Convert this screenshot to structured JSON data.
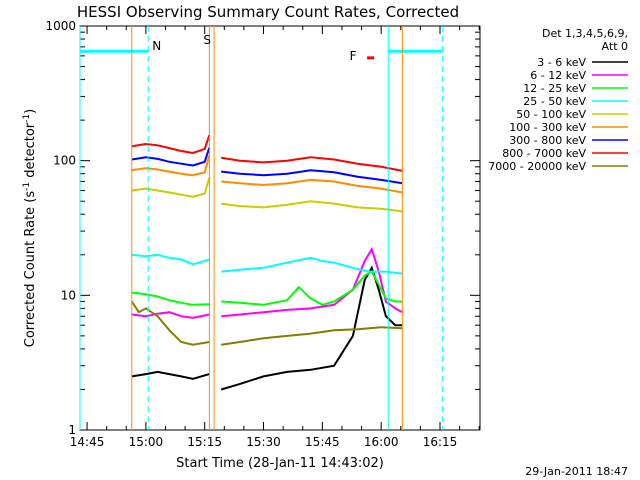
{
  "chart_data": {
    "type": "line",
    "title": "HESSI Observing Summary Count Rates, Corrected",
    "xlabel": "Start Time (28-Jan-11 14:43:02)",
    "ylabel": "Corrected Count Rate (s",
    "ylabel_sup1": "-1",
    "ylabel_mid": " detector",
    "ylabel_sup2": "-1",
    "ylabel_end": ")",
    "y_scale": "log",
    "ylim": [
      1,
      1000
    ],
    "xlim_minutes": [
      14.72,
      16.42
    ],
    "x_ticks": [
      {
        "minute": 14.75,
        "label": "14:45"
      },
      {
        "minute": 15.0,
        "label": "15:00"
      },
      {
        "minute": 15.25,
        "label": "15:15"
      },
      {
        "minute": 15.5,
        "label": "15:30"
      },
      {
        "minute": 15.75,
        "label": "15:45"
      },
      {
        "minute": 16.0,
        "label": "16:00"
      },
      {
        "minute": 16.25,
        "label": "16:15"
      }
    ],
    "y_ticks": [
      {
        "value": 1,
        "label": "1"
      },
      {
        "value": 10,
        "label": "10"
      },
      {
        "value": 100,
        "label": "100"
      },
      {
        "value": 1000,
        "label": "1000"
      }
    ],
    "legend_title_1": "Det 1,3,4,5,6,9,",
    "legend_title_2": "Att 0",
    "series": [
      {
        "name": "3 - 6 keV",
        "color": "#000000",
        "seg1": [
          [
            14.94,
            2.5
          ],
          [
            15.0,
            2.6
          ],
          [
            15.05,
            2.7
          ],
          [
            15.1,
            2.6
          ],
          [
            15.15,
            2.5
          ],
          [
            15.2,
            2.4
          ],
          [
            15.27,
            2.6
          ]
        ],
        "seg2": [
          [
            15.32,
            2.0
          ],
          [
            15.4,
            2.2
          ],
          [
            15.5,
            2.5
          ],
          [
            15.6,
            2.7
          ],
          [
            15.7,
            2.8
          ],
          [
            15.8,
            3.0
          ],
          [
            15.88,
            5
          ],
          [
            15.93,
            13
          ],
          [
            15.96,
            16
          ],
          [
            15.99,
            11
          ],
          [
            16.02,
            7
          ],
          [
            16.06,
            6
          ],
          [
            16.09,
            6
          ]
        ]
      },
      {
        "name": "6 - 12 keV",
        "color": "#ff00ff",
        "seg1": [
          [
            14.94,
            7.2
          ],
          [
            15.0,
            7.0
          ],
          [
            15.05,
            7.3
          ],
          [
            15.1,
            7.5
          ],
          [
            15.15,
            7.0
          ],
          [
            15.2,
            6.8
          ],
          [
            15.27,
            7.2
          ]
        ],
        "seg2": [
          [
            15.32,
            7.0
          ],
          [
            15.4,
            7.2
          ],
          [
            15.5,
            7.5
          ],
          [
            15.6,
            7.8
          ],
          [
            15.7,
            8.0
          ],
          [
            15.8,
            8.5
          ],
          [
            15.88,
            11
          ],
          [
            15.93,
            18
          ],
          [
            15.96,
            22
          ],
          [
            15.99,
            15
          ],
          [
            16.02,
            9
          ],
          [
            16.06,
            8
          ],
          [
            16.09,
            7.5
          ]
        ]
      },
      {
        "name": "12 - 25 keV",
        "color": "#00ff00",
        "seg1": [
          [
            14.94,
            10.5
          ],
          [
            15.0,
            10.2
          ],
          [
            15.05,
            9.8
          ],
          [
            15.1,
            9.2
          ],
          [
            15.15,
            8.8
          ],
          [
            15.2,
            8.5
          ],
          [
            15.27,
            8.6
          ]
        ],
        "seg2": [
          [
            15.32,
            9.0
          ],
          [
            15.4,
            8.8
          ],
          [
            15.5,
            8.5
          ],
          [
            15.6,
            9.2
          ],
          [
            15.65,
            11.5
          ],
          [
            15.7,
            9.5
          ],
          [
            15.75,
            8.5
          ],
          [
            15.8,
            9.0
          ],
          [
            15.88,
            11
          ],
          [
            15.93,
            14
          ],
          [
            15.96,
            15
          ],
          [
            15.99,
            12
          ],
          [
            16.02,
            9.5
          ],
          [
            16.06,
            9
          ],
          [
            16.09,
            9
          ]
        ]
      },
      {
        "name": "25 - 50 keV",
        "color": "#00ffff",
        "seg1": [
          [
            14.94,
            20
          ],
          [
            15.0,
            19.5
          ],
          [
            15.05,
            20
          ],
          [
            15.1,
            19
          ],
          [
            15.15,
            18.5
          ],
          [
            15.2,
            17
          ],
          [
            15.27,
            18.5
          ]
        ],
        "seg2": [
          [
            15.32,
            15
          ],
          [
            15.4,
            15.5
          ],
          [
            15.5,
            16
          ],
          [
            15.6,
            17.5
          ],
          [
            15.7,
            19
          ],
          [
            15.75,
            18
          ],
          [
            15.8,
            17.5
          ],
          [
            15.88,
            16
          ],
          [
            15.95,
            15
          ],
          [
            16.02,
            15
          ],
          [
            16.09,
            14.5
          ]
        ]
      },
      {
        "name": "50 - 100 keV",
        "color": "#cccc00",
        "seg1": [
          [
            14.94,
            60
          ],
          [
            15.0,
            62
          ],
          [
            15.05,
            60
          ],
          [
            15.1,
            58
          ],
          [
            15.15,
            56
          ],
          [
            15.2,
            54
          ],
          [
            15.25,
            57
          ],
          [
            15.27,
            75
          ]
        ],
        "seg2": [
          [
            15.32,
            48
          ],
          [
            15.4,
            46
          ],
          [
            15.5,
            45
          ],
          [
            15.6,
            47
          ],
          [
            15.7,
            50
          ],
          [
            15.8,
            48
          ],
          [
            15.9,
            45
          ],
          [
            16.0,
            44
          ],
          [
            16.09,
            42
          ]
        ]
      },
      {
        "name": "100 - 300 keV",
        "color": "#ff8c00",
        "seg1": [
          [
            14.94,
            85
          ],
          [
            15.0,
            88
          ],
          [
            15.05,
            86
          ],
          [
            15.1,
            83
          ],
          [
            15.15,
            80
          ],
          [
            15.2,
            78
          ],
          [
            15.25,
            82
          ],
          [
            15.27,
            110
          ]
        ],
        "seg2": [
          [
            15.32,
            70
          ],
          [
            15.4,
            68
          ],
          [
            15.5,
            66
          ],
          [
            15.6,
            68
          ],
          [
            15.7,
            72
          ],
          [
            15.8,
            70
          ],
          [
            15.9,
            65
          ],
          [
            16.0,
            62
          ],
          [
            16.09,
            58
          ]
        ]
      },
      {
        "name": "300 - 800 keV",
        "color": "#0000ff",
        "seg1": [
          [
            14.94,
            102
          ],
          [
            15.0,
            106
          ],
          [
            15.05,
            103
          ],
          [
            15.1,
            98
          ],
          [
            15.15,
            95
          ],
          [
            15.2,
            92
          ],
          [
            15.25,
            98
          ],
          [
            15.27,
            125
          ]
        ],
        "seg2": [
          [
            15.32,
            83
          ],
          [
            15.4,
            80
          ],
          [
            15.5,
            78
          ],
          [
            15.6,
            80
          ],
          [
            15.7,
            85
          ],
          [
            15.8,
            82
          ],
          [
            15.9,
            76
          ],
          [
            16.0,
            72
          ],
          [
            16.09,
            68
          ]
        ]
      },
      {
        "name": "800 - 7000 keV",
        "color": "#ff0000",
        "seg1": [
          [
            14.94,
            128
          ],
          [
            15.0,
            133
          ],
          [
            15.05,
            130
          ],
          [
            15.1,
            124
          ],
          [
            15.15,
            118
          ],
          [
            15.2,
            114
          ],
          [
            15.25,
            122
          ],
          [
            15.27,
            155
          ]
        ],
        "seg2": [
          [
            15.32,
            105
          ],
          [
            15.4,
            100
          ],
          [
            15.5,
            97
          ],
          [
            15.6,
            100
          ],
          [
            15.7,
            106
          ],
          [
            15.8,
            102
          ],
          [
            15.9,
            95
          ],
          [
            16.0,
            90
          ],
          [
            16.09,
            84
          ]
        ]
      },
      {
        "name": "7000 - 20000 keV",
        "color": "#808000",
        "seg1": [
          [
            14.94,
            9.0
          ],
          [
            14.97,
            7.5
          ],
          [
            15.0,
            8.0
          ],
          [
            15.05,
            7.0
          ],
          [
            15.1,
            5.5
          ],
          [
            15.15,
            4.5
          ],
          [
            15.2,
            4.3
          ],
          [
            15.27,
            4.5
          ]
        ],
        "seg2": [
          [
            15.32,
            4.3
          ],
          [
            15.4,
            4.5
          ],
          [
            15.5,
            4.8
          ],
          [
            15.6,
            5.0
          ],
          [
            15.7,
            5.2
          ],
          [
            15.8,
            5.5
          ],
          [
            15.9,
            5.6
          ],
          [
            16.0,
            5.8
          ],
          [
            16.09,
            5.7
          ]
        ]
      }
    ],
    "markers": [
      {
        "label": "N",
        "color": "#00ffff",
        "minute": 15.01
      },
      {
        "label": "S",
        "color": "#ff8c00",
        "minute": 15.285
      },
      {
        "label": "F",
        "color": "#ff0000",
        "minute": 15.9
      }
    ],
    "night_bar_value": 650,
    "night_color": "#00ffff",
    "saa_color": "#ff8c00",
    "flare_color": "#ff0000",
    "night_left_solid": 14.72,
    "night_left_end": 15.01,
    "night_right_solid": 16.03,
    "night_right_end": 16.26,
    "saa_lines": [
      14.94,
      15.27,
      15.29,
      16.09
    ],
    "night_lines_solid": [
      14.72,
      16.03
    ],
    "night_lines_dashed": [
      15.01,
      16.26
    ],
    "flare_bar": [
      15.94,
      15.97
    ],
    "flare_bar_value": 580
  },
  "timestamp": "29-Jan-2011 18:47"
}
